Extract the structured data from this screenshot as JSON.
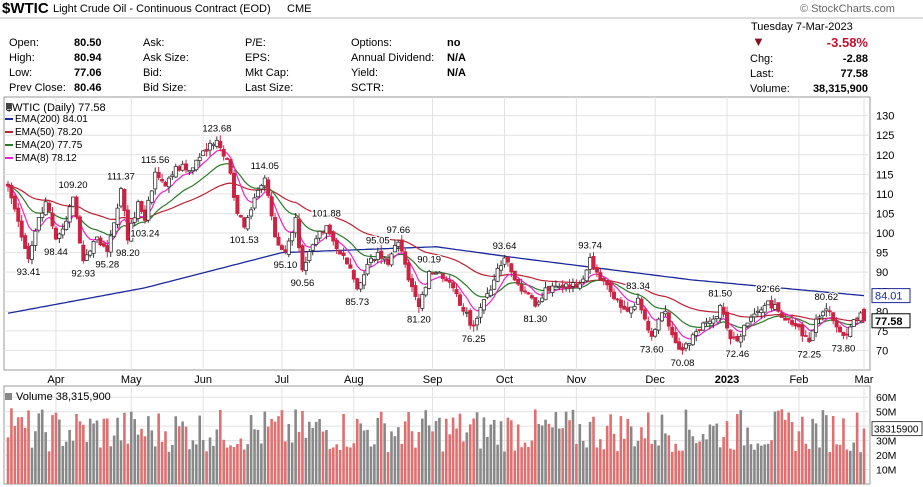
{
  "header": {
    "symbol": "$WTIC",
    "description": "Light Crude Oil - Continuous Contract (EOD)",
    "exchange": "CME",
    "watermark": "© StockCharts.com",
    "date": "Tuesday  7-Mar-2023",
    "pct_change": "-3.58%",
    "change": "-2.88",
    "last": "77.58",
    "volume": "38,315,900"
  },
  "quote": {
    "col1": [
      {
        "label": "Open:",
        "value": "80.50"
      },
      {
        "label": "High:",
        "value": "80.94"
      },
      {
        "label": "Low:",
        "value": "77.06"
      },
      {
        "label": "Prev Close:",
        "value": "80.46"
      }
    ],
    "col2": [
      "Ask:",
      "Ask Size:",
      "Bid:",
      "Bid Size:"
    ],
    "col3": [
      "P/E:",
      "EPS:",
      "Mkt Cap:",
      "Last Size:"
    ],
    "col4": [
      {
        "label": "Options:",
        "value": "no"
      },
      {
        "label": "Annual Dividend:",
        "value": "N/A"
      },
      {
        "label": "Yield:",
        "value": "N/A"
      },
      {
        "label": "SCTR:",
        "value": ""
      }
    ],
    "col5": [
      {
        "label": "Chg:",
        "value": "-2.88"
      },
      {
        "label": "Last:",
        "value": "77.58"
      },
      {
        "label": "Volume:",
        "value": "38,315,900"
      }
    ]
  },
  "colors": {
    "up": "#333333",
    "down": "#cc2244",
    "ema200": "#1a2a9a",
    "ema50": "#bb2233",
    "ema20": "#2a7a2a",
    "ema8": "#ee22cc",
    "vol_up": "#888888",
    "vol_down": "#e07070",
    "grid": "#e2e2e2",
    "axis": "#888888"
  },
  "chart_data": {
    "type": "candlestick",
    "title": "$WTIC (Daily) 77.58",
    "legend": [
      {
        "label": "EMA(200) 84.01",
        "color": "#1a2a9a"
      },
      {
        "label": "EMA(50) 78.20",
        "color": "#bb2233"
      },
      {
        "label": "EMA(20) 77.75",
        "color": "#2a7a2a"
      },
      {
        "label": "EMA(8) 78.12",
        "color": "#ee22cc"
      }
    ],
    "ylim": [
      65,
      134
    ],
    "y_ticks": [
      70,
      75,
      80,
      85,
      90,
      95,
      100,
      105,
      110,
      115,
      120,
      125,
      130
    ],
    "x_range": [
      0,
      250
    ],
    "month_labels": [
      {
        "x": 14,
        "label": "Apr"
      },
      {
        "x": 36,
        "label": "May"
      },
      {
        "x": 57,
        "label": "Jun"
      },
      {
        "x": 80,
        "label": "Jul"
      },
      {
        "x": 101,
        "label": "Aug"
      },
      {
        "x": 124,
        "label": "Sep"
      },
      {
        "x": 145,
        "label": "Oct"
      },
      {
        "x": 166,
        "label": "Nov"
      },
      {
        "x": 189,
        "label": "Dec"
      },
      {
        "x": 210,
        "label": "2023"
      },
      {
        "x": 231,
        "label": "Feb"
      },
      {
        "x": 250,
        "label": "Mar"
      }
    ],
    "price_anchors": [
      [
        0,
        112
      ],
      [
        3,
        103
      ],
      [
        6,
        93.41
      ],
      [
        9,
        104
      ],
      [
        11,
        108
      ],
      [
        14,
        98.44
      ],
      [
        17,
        103
      ],
      [
        19,
        109.2
      ],
      [
        22,
        92.93
      ],
      [
        26,
        99
      ],
      [
        29,
        95.28
      ],
      [
        33,
        111.37
      ],
      [
        35,
        98.2
      ],
      [
        38,
        108
      ],
      [
        40,
        103.24
      ],
      [
        43,
        115.56
      ],
      [
        46,
        112
      ],
      [
        49,
        117
      ],
      [
        53,
        116
      ],
      [
        57,
        121
      ],
      [
        61,
        123.68
      ],
      [
        64,
        119
      ],
      [
        67,
        105
      ],
      [
        69,
        101.53
      ],
      [
        72,
        109
      ],
      [
        75,
        114.05
      ],
      [
        78,
        99
      ],
      [
        81,
        95.1
      ],
      [
        84,
        104
      ],
      [
        86,
        90.56
      ],
      [
        89,
        97
      ],
      [
        93,
        101.88
      ],
      [
        96,
        96
      ],
      [
        100,
        91
      ],
      [
        102,
        85.73
      ],
      [
        105,
        92
      ],
      [
        108,
        95.05
      ],
      [
        111,
        92
      ],
      [
        114,
        97.66
      ],
      [
        117,
        88
      ],
      [
        120,
        81.2
      ],
      [
        123,
        90.19
      ],
      [
        126,
        90
      ],
      [
        130,
        86
      ],
      [
        133,
        80
      ],
      [
        136,
        76.25
      ],
      [
        139,
        83
      ],
      [
        142,
        88
      ],
      [
        145,
        93.64
      ],
      [
        148,
        88
      ],
      [
        151,
        85
      ],
      [
        154,
        81.3
      ],
      [
        157,
        86
      ],
      [
        162,
        86
      ],
      [
        167,
        87
      ],
      [
        170,
        93.74
      ],
      [
        173,
        88
      ],
      [
        176,
        85
      ],
      [
        181,
        80
      ],
      [
        184,
        83.34
      ],
      [
        186,
        78
      ],
      [
        188,
        73.6
      ],
      [
        190,
        78
      ],
      [
        192,
        80
      ],
      [
        194,
        74
      ],
      [
        197,
        70.08
      ],
      [
        200,
        74
      ],
      [
        203,
        77
      ],
      [
        206,
        78
      ],
      [
        208,
        81.5
      ],
      [
        211,
        73
      ],
      [
        213,
        72.46
      ],
      [
        216,
        77
      ],
      [
        219,
        80
      ],
      [
        222,
        82.66
      ],
      [
        225,
        80
      ],
      [
        228,
        78
      ],
      [
        231,
        76
      ],
      [
        234,
        72.25
      ],
      [
        236,
        78
      ],
      [
        239,
        80.62
      ],
      [
        242,
        76
      ],
      [
        244,
        73.8
      ],
      [
        246,
        76
      ],
      [
        248,
        78
      ],
      [
        250,
        80.46
      ]
    ],
    "last_candle": {
      "open": 80.5,
      "high": 80.94,
      "low": 77.06,
      "close": 77.58
    },
    "ema200_anchors": [
      [
        0,
        79.5
      ],
      [
        40,
        86
      ],
      [
        80,
        95
      ],
      [
        125,
        96.5
      ],
      [
        150,
        93.5
      ],
      [
        200,
        88
      ],
      [
        250,
        84.01
      ]
    ],
    "annotations": [
      {
        "x": 6,
        "value": "93.41"
      },
      {
        "x": 14,
        "value": "98.44"
      },
      {
        "x": 19,
        "value": "109.20"
      },
      {
        "x": 22,
        "value": "92.93"
      },
      {
        "x": 29,
        "value": "95.28"
      },
      {
        "x": 33,
        "value": "111.37"
      },
      {
        "x": 35,
        "value": "98.20"
      },
      {
        "x": 40,
        "value": "103.24"
      },
      {
        "x": 43,
        "value": "115.56"
      },
      {
        "x": 61,
        "value": "123.68"
      },
      {
        "x": 69,
        "value": "101.53"
      },
      {
        "x": 75,
        "value": "114.05"
      },
      {
        "x": 81,
        "value": "95.10"
      },
      {
        "x": 86,
        "value": "90.56"
      },
      {
        "x": 93,
        "value": "101.88"
      },
      {
        "x": 102,
        "value": "85.73"
      },
      {
        "x": 108,
        "value": "95.05"
      },
      {
        "x": 114,
        "value": "97.66"
      },
      {
        "x": 120,
        "value": "81.20"
      },
      {
        "x": 123,
        "value": "90.19"
      },
      {
        "x": 136,
        "value": "76.25"
      },
      {
        "x": 145,
        "value": "93.64"
      },
      {
        "x": 154,
        "value": "81.30"
      },
      {
        "x": 170,
        "value": "93.74"
      },
      {
        "x": 184,
        "value": "83.34"
      },
      {
        "x": 188,
        "value": "73.60"
      },
      {
        "x": 197,
        "value": "70.08"
      },
      {
        "x": 208,
        "value": "81.50"
      },
      {
        "x": 213,
        "value": "72.46"
      },
      {
        "x": 222,
        "value": "82.66"
      },
      {
        "x": 234,
        "value": "72.25"
      },
      {
        "x": 239,
        "value": "80.62"
      },
      {
        "x": 244,
        "value": "73.80"
      }
    ],
    "last_labels": [
      {
        "value": 84.01,
        "label": "84.01",
        "color": "#1a2a9a"
      },
      {
        "value": 77.58,
        "label": "77.58",
        "color": "#000000"
      }
    ],
    "volume": {
      "title": "Volume 38,315,900",
      "ylim": [
        0,
        65
      ],
      "y_ticks": [
        {
          "value": 10,
          "label": "10M"
        },
        {
          "value": 20,
          "label": "20M"
        },
        {
          "value": 30,
          "label": "30M"
        },
        {
          "value": 40,
          "label": "40M"
        },
        {
          "value": 50,
          "label": "50M"
        },
        {
          "value": 60,
          "label": "60M"
        }
      ],
      "last_value": 38.3159,
      "last_label": "38315900"
    }
  }
}
